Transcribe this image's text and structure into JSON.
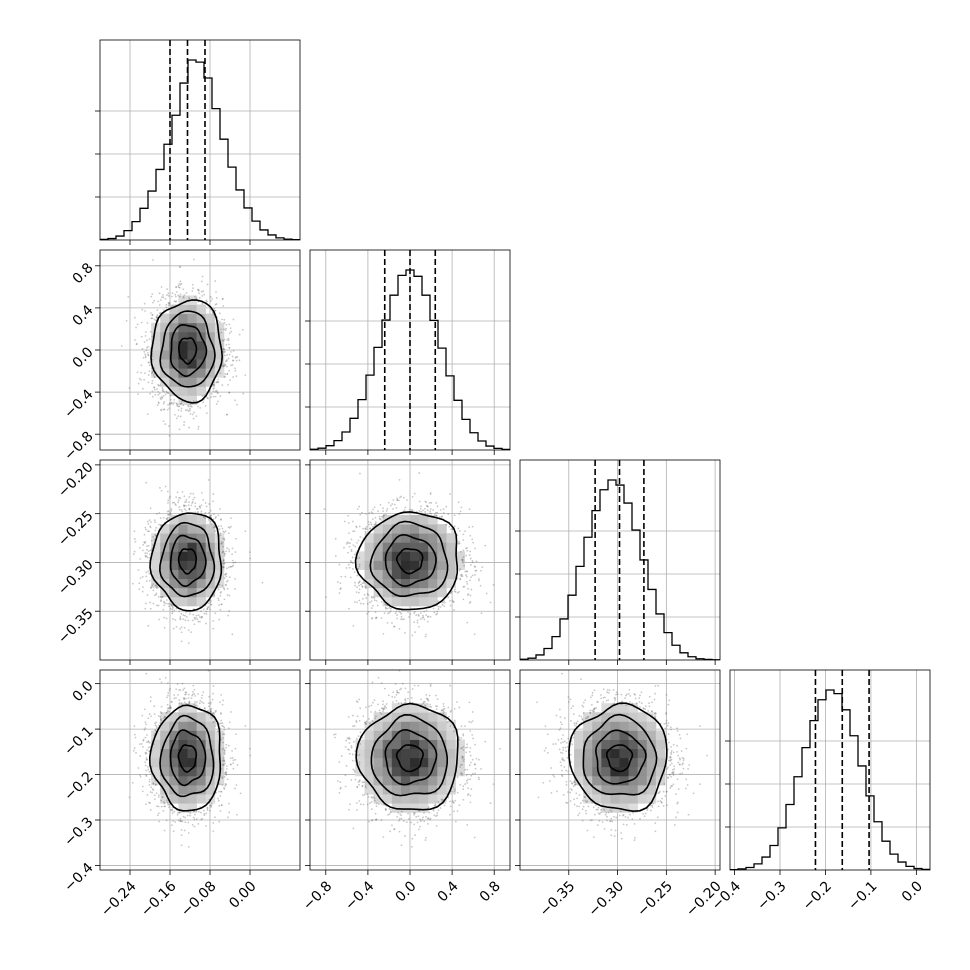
{
  "chart_data": {
    "type": "corner",
    "parameters": [
      {
        "mean": -0.125,
        "sd": 0.035,
        "range": [
          -0.3,
          0.1
        ],
        "ticks": [
          -0.24,
          -0.16,
          -0.08,
          0.0
        ],
        "tick_labels": [
          "−0.24",
          "−0.16",
          "−0.08",
          "0.00"
        ],
        "quantiles": [
          -0.16,
          -0.125,
          -0.09
        ],
        "hist": [
          0.003,
          0.008,
          0.022,
          0.052,
          0.102,
          0.176,
          0.272,
          0.392,
          0.532,
          0.693,
          0.872,
          1.0,
          0.988,
          0.9,
          0.73,
          0.56,
          0.405,
          0.278,
          0.178,
          0.105,
          0.056,
          0.028,
          0.012,
          0.005,
          0.002
        ]
      },
      {
        "mean": 0.0,
        "sd": 0.24,
        "range": [
          -0.95,
          0.95
        ],
        "ticks": [
          -0.8,
          -0.4,
          0.0,
          0.4,
          0.8
        ],
        "tick_labels": [
          "−0.8",
          "−0.4",
          "0.0",
          "0.4",
          "0.8"
        ],
        "quantiles": [
          -0.24,
          0.0,
          0.24
        ],
        "hist": [
          0.004,
          0.01,
          0.024,
          0.052,
          0.1,
          0.176,
          0.28,
          0.416,
          0.57,
          0.722,
          0.86,
          0.97,
          1.0,
          0.965,
          0.86,
          0.72,
          0.566,
          0.412,
          0.276,
          0.17,
          0.096,
          0.05,
          0.022,
          0.009,
          0.003
        ]
      },
      {
        "mean": -0.298,
        "sd": 0.025,
        "range": [
          -0.4,
          -0.195
        ],
        "ticks": [
          -0.35,
          -0.3,
          -0.25,
          -0.2
        ],
        "tick_labels": [
          "−0.35",
          "−0.30",
          "−0.25",
          "−0.20"
        ],
        "quantiles": [
          -0.323,
          -0.298,
          -0.273
        ],
        "hist": [
          0.004,
          0.01,
          0.028,
          0.064,
          0.13,
          0.228,
          0.36,
          0.52,
          0.682,
          0.83,
          0.946,
          1.0,
          0.972,
          0.872,
          0.722,
          0.556,
          0.392,
          0.256,
          0.152,
          0.082,
          0.04,
          0.018,
          0.007,
          0.003,
          0.001
        ]
      },
      {
        "mean": -0.163,
        "sd": 0.058,
        "range": [
          -0.41,
          0.03
        ],
        "ticks": [
          -0.4,
          -0.3,
          -0.2,
          -0.1,
          0.0
        ],
        "tick_labels": [
          "−0.4",
          "−0.3",
          "−0.2",
          "−0.1",
          "0.0"
        ],
        "quantiles": [
          -0.222,
          -0.163,
          -0.104
        ],
        "hist": [
          0.002,
          0.006,
          0.014,
          0.034,
          0.072,
          0.136,
          0.234,
          0.364,
          0.518,
          0.68,
          0.83,
          0.946,
          1.0,
          0.98,
          0.89,
          0.746,
          0.578,
          0.412,
          0.268,
          0.16,
          0.088,
          0.044,
          0.02,
          0.008,
          0.003
        ]
      }
    ],
    "grid": true,
    "contour_levels_sigma": [
      0.5,
      1.0,
      1.5,
      2.0
    ],
    "colors": {
      "line": "#000000",
      "grid": "#b0b0b0",
      "points": "#606060"
    }
  }
}
